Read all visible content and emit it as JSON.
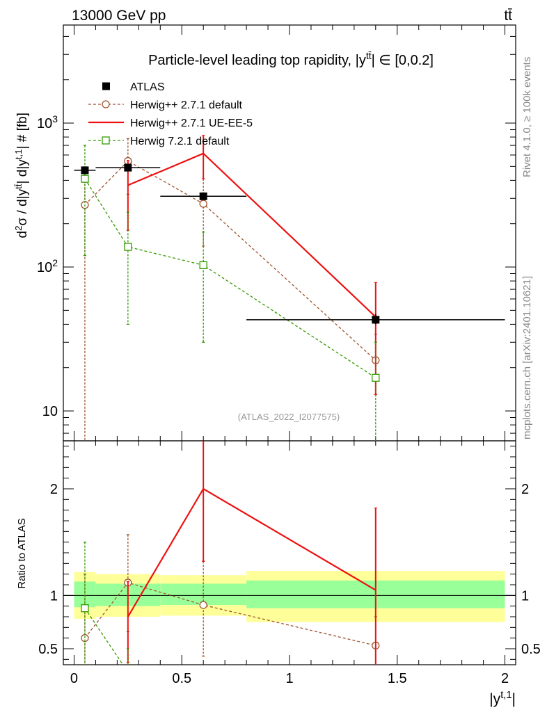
{
  "header": {
    "energy_label": "13000 GeV pp",
    "process_label": "tt̄"
  },
  "side_labels": {
    "rivet": "Rivet 4.1.0, ≥ 100k events",
    "mcplots": "mcplots.cern.ch [arXiv:2401.10621]"
  },
  "chart_data": [
    {
      "type": "line",
      "panel": "main",
      "title": "Particle-level leading top rapidity, |y^tt̄| ∈ [0,0.2]",
      "ylabel": "d²σ / d|y^tt̄| d|y^t,1| # [fb]",
      "xlabel": "|y^t,1|",
      "yscale": "log",
      "ylim": [
        6.2,
        4800
      ],
      "xlim": [
        -0.05,
        2.05
      ],
      "y_ticks": [
        {
          "v": 10,
          "label": "10"
        },
        {
          "v": 100,
          "label": "10²"
        },
        {
          "v": 1000,
          "label": "10³"
        }
      ],
      "watermark": "(ATLAS_2022_I2077575)",
      "series": [
        {
          "name": "ATLAS",
          "color": "#000000",
          "style": "marker",
          "points": [
            {
              "x": 0.05,
              "y": 470,
              "xlo": 0.0,
              "xhi": 0.1,
              "elo": 440,
              "ehi": 500
            },
            {
              "x": 0.25,
              "y": 490,
              "xlo": 0.1,
              "xhi": 0.4,
              "elo": 462,
              "ehi": 520
            },
            {
              "x": 0.6,
              "y": 310,
              "xlo": 0.4,
              "xhi": 0.8,
              "elo": 292,
              "ehi": 330
            },
            {
              "x": 1.4,
              "y": 43,
              "xlo": 0.8,
              "xhi": 2.0,
              "elo": 40,
              "ehi": 47
            }
          ]
        },
        {
          "name": "Herwig++ 2.7.1 default",
          "color": "#A0522D",
          "style": "dashed-circle",
          "points": [
            {
              "x": 0.05,
              "y": 270,
              "elo": 4,
              "ehi": 470
            },
            {
              "x": 0.25,
              "y": 545,
              "elo": 320,
              "ehi": 780
            },
            {
              "x": 0.6,
              "y": 275,
              "elo": 140,
              "ehi": 410
            },
            {
              "x": 1.4,
              "y": 22.5,
              "elo": 13,
              "ehi": 34
            }
          ]
        },
        {
          "name": "Herwig++ 2.7.1 UE-EE-5",
          "color": "#EE1111",
          "style": "solid",
          "points": [
            {
              "x": 0.25,
              "y": 370,
              "elo": 180,
              "ehi": 550
            },
            {
              "x": 0.6,
              "y": 615,
              "elo": 410,
              "ehi": 820
            },
            {
              "x": 1.4,
              "y": 45,
              "elo": 13,
              "ehi": 78
            }
          ]
        },
        {
          "name": "Herwig 7.2.1 default",
          "color": "#339900",
          "style": "dashed-square",
          "points": [
            {
              "x": 0.05,
              "y": 410,
              "elo": 120,
              "ehi": 700
            },
            {
              "x": 0.25,
              "y": 138,
              "elo": 40,
              "ehi": 240
            },
            {
              "x": 0.6,
              "y": 103,
              "elo": 30,
              "ehi": 175
            },
            {
              "x": 1.4,
              "y": 17,
              "elo": 4,
              "ehi": 30
            }
          ]
        }
      ]
    },
    {
      "type": "line",
      "panel": "ratio",
      "ylabel": "Ratio to ATLAS",
      "ylim": [
        0.35,
        2.45
      ],
      "xlim": [
        -0.05,
        2.05
      ],
      "x_ticks": [
        {
          "v": 0,
          "label": "0"
        },
        {
          "v": 0.5,
          "label": "0.5"
        },
        {
          "v": 1,
          "label": "1"
        },
        {
          "v": 1.5,
          "label": "1.5"
        },
        {
          "v": 2,
          "label": "2"
        }
      ],
      "y_ticks": [
        {
          "v": 0.5,
          "label": "0.5"
        },
        {
          "v": 1,
          "label": "1"
        },
        {
          "v": 2,
          "label": "2"
        }
      ],
      "bands": [
        {
          "xlo": 0.0,
          "xhi": 0.1,
          "in_lo": 0.89,
          "in_hi": 1.13,
          "out_lo": 0.78,
          "out_hi": 1.22
        },
        {
          "xlo": 0.1,
          "xhi": 0.4,
          "in_lo": 0.9,
          "in_hi": 1.11,
          "out_lo": 0.8,
          "out_hi": 1.2
        },
        {
          "xlo": 0.4,
          "xhi": 0.8,
          "in_lo": 0.91,
          "in_hi": 1.11,
          "out_lo": 0.81,
          "out_hi": 1.19
        },
        {
          "xlo": 0.8,
          "xhi": 2.0,
          "in_lo": 0.88,
          "in_hi": 1.14,
          "out_lo": 0.75,
          "out_hi": 1.23
        }
      ],
      "series": [
        {
          "name": "Herwig++ 2.7.1 default",
          "color": "#A0522D",
          "style": "dashed-circle",
          "points": [
            {
              "x": 0.05,
              "y": 0.6,
              "elo": 0.01,
              "ehi": 1.2
            },
            {
              "x": 0.25,
              "y": 1.12,
              "elo": 0.66,
              "ehi": 1.57
            },
            {
              "x": 0.6,
              "y": 0.91,
              "elo": 0.43,
              "ehi": 1.32
            },
            {
              "x": 1.4,
              "y": 0.53,
              "elo": 0.3,
              "ehi": 0.8
            }
          ]
        },
        {
          "name": "Herwig++ 2.7.1 UE-EE-5",
          "color": "#EE1111",
          "style": "solid",
          "points": [
            {
              "x": 0.25,
              "y": 0.8,
              "elo": 0.37,
              "ehi": 1.13
            },
            {
              "x": 0.6,
              "y": 2.0,
              "elo": 1.32,
              "ehi": 2.65
            },
            {
              "x": 1.4,
              "y": 1.05,
              "elo": 0.3,
              "ehi": 1.82
            }
          ]
        },
        {
          "name": "Herwig 7.2.1 default",
          "color": "#339900",
          "style": "dashed-square",
          "points": [
            {
              "x": 0.05,
              "y": 0.88,
              "elo": 0.2,
              "ehi": 1.5
            },
            {
              "x": 0.25,
              "y": 0.28,
              "elo": 0.1,
              "ehi": 0.5
            }
          ]
        }
      ]
    }
  ]
}
